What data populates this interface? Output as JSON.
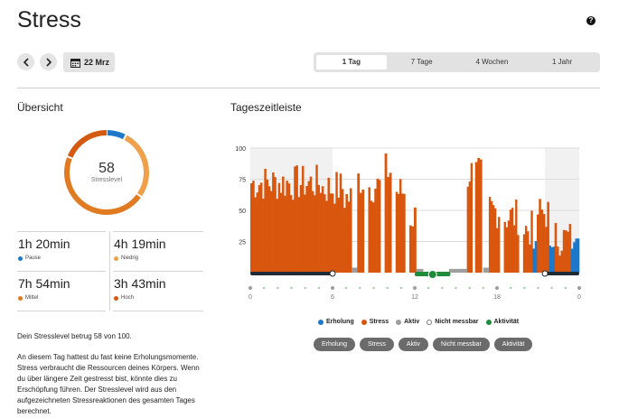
{
  "header": {
    "title": "Stress",
    "help_icon": "question-circle-icon",
    "date_label": "22 Mrz"
  },
  "range_tabs": [
    {
      "label": "1 Tag",
      "active": true
    },
    {
      "label": "7 Tage",
      "active": false
    },
    {
      "label": "4 Wochen",
      "active": false
    },
    {
      "label": "1 Jahr",
      "active": false
    }
  ],
  "overview": {
    "title": "Übersicht",
    "stress_value": "58",
    "stress_label": "Stresslevel",
    "stats": [
      {
        "value": "1h 20min",
        "label": "Pause",
        "color": "#1f77c8"
      },
      {
        "value": "4h 19min",
        "label": "Niedrig",
        "color": "#f0a04b"
      },
      {
        "value": "7h 54min",
        "label": "Mittel",
        "color": "#e07b22"
      },
      {
        "value": "3h 43min",
        "label": "Hoch",
        "color": "#d45a12"
      }
    ],
    "summary_line": "Dein Stresslevel betrug 58 von 100.",
    "summary_text": "An diesem Tag hattest du fast keine Erholungsmomente. Stress verbraucht die Ressourcen deines Körpers. Wenn du über längere Zeit gestresst bist, könnte dies zu Erschöpfung führen. Der Stresslevel wird aus den aufgezeichneten Stressreaktionen des gesamten Tages berechnet."
  },
  "timeline": {
    "title": "Tageszeitleiste",
    "legend": [
      {
        "label": "Erholung",
        "color": "#1f77c8"
      },
      {
        "label": "Stress",
        "color": "#d9560e"
      },
      {
        "label": "Aktiv",
        "color": "#9e9e9e"
      },
      {
        "label": "Nicht messbar",
        "color": "#ffffff"
      },
      {
        "label": "Aktivität",
        "color": "#1e8c3a"
      }
    ],
    "filters": [
      "Erholung",
      "Stress",
      "Aktiv",
      "Nicht messbar",
      "Aktivität"
    ]
  },
  "chart_data": {
    "type": "bar",
    "title": "Tageszeitleiste",
    "ylim": [
      0,
      100
    ],
    "yticks": [
      "100",
      "75",
      "50",
      "25"
    ],
    "xlim": [
      0,
      24
    ],
    "xticks": [
      "0",
      "6",
      "12",
      "18",
      "0"
    ],
    "series": [
      {
        "name": "Stress",
        "color": "#d9560e",
        "segments": [
          {
            "x0": 0.0,
            "x1": 5.2,
            "level": 72
          },
          {
            "x0": 5.2,
            "x1": 6.8,
            "level": 68
          },
          {
            "x0": 6.8,
            "x1": 7.4,
            "level": 60
          },
          {
            "x0": 7.8,
            "x1": 8.3,
            "level": 75
          },
          {
            "x0": 8.6,
            "x1": 9.5,
            "level": 70
          },
          {
            "x0": 9.8,
            "x1": 10.3,
            "level": 82
          },
          {
            "x0": 10.6,
            "x1": 11.3,
            "level": 65
          },
          {
            "x0": 11.6,
            "x1": 12.1,
            "level": 45
          },
          {
            "x0": 15.8,
            "x1": 16.2,
            "level": 80
          },
          {
            "x0": 16.4,
            "x1": 16.9,
            "level": 78
          },
          {
            "x0": 17.4,
            "x1": 18.2,
            "level": 50
          },
          {
            "x0": 18.5,
            "x1": 19.6,
            "level": 45
          },
          {
            "x0": 19.9,
            "x1": 20.6,
            "level": 35
          },
          {
            "x0": 20.9,
            "x1": 21.8,
            "level": 48
          },
          {
            "x0": 22.2,
            "x1": 23.4,
            "level": 28
          }
        ]
      },
      {
        "name": "Erholung",
        "color": "#1f77c8",
        "segments": [
          {
            "x0": 20.6,
            "x1": 20.9,
            "level": 22
          },
          {
            "x0": 21.8,
            "x1": 22.2,
            "level": 25
          },
          {
            "x0": 23.4,
            "x1": 24.0,
            "level": 24
          }
        ]
      },
      {
        "name": "Aktiv",
        "color": "#9e9e9e",
        "segments": [
          {
            "x0": 7.4,
            "x1": 7.8,
            "level": 4
          },
          {
            "x0": 12.1,
            "x1": 12.6,
            "level": 3
          },
          {
            "x0": 14.5,
            "x1": 15.8,
            "level": 3
          },
          {
            "x0": 17.0,
            "x1": 17.4,
            "level": 4
          }
        ]
      }
    ],
    "sleep_intervals": [
      [
        0,
        6
      ],
      [
        21.5,
        24
      ]
    ],
    "activity_intervals": [
      [
        12.0,
        14.6
      ]
    ]
  }
}
